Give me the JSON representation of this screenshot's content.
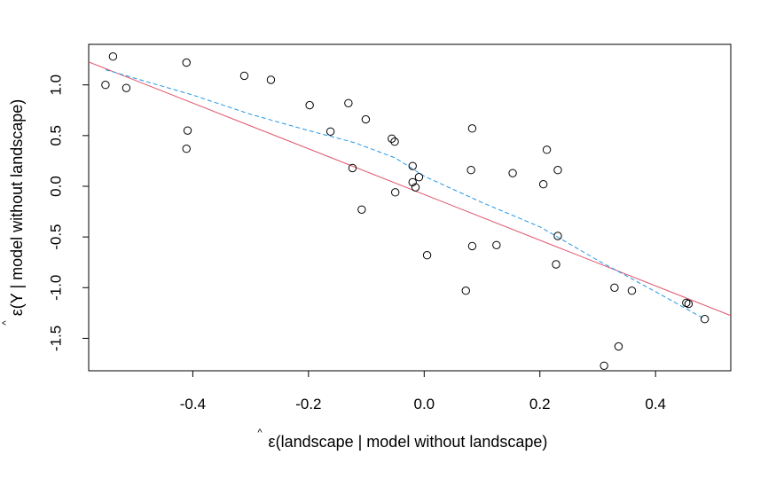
{
  "chart_data": {
    "type": "scatter",
    "title": "",
    "xlabel": "ε(landscape | model without landscape)",
    "ylabel": "ε(Y | model without landscape)",
    "xlabel_hat": "^",
    "ylabel_hat": "^",
    "xlim": [
      -0.58,
      0.53
    ],
    "ylim": [
      -1.82,
      1.4
    ],
    "x_ticks": [
      -0.4,
      -0.2,
      0.0,
      0.2,
      0.4
    ],
    "x_tick_labels": [
      "-0.4",
      "-0.2",
      "0.0",
      "0.2",
      "0.4"
    ],
    "y_ticks": [
      -1.5,
      -1.0,
      -0.5,
      0.0,
      0.5,
      1.0
    ],
    "y_tick_labels": [
      "-1.5",
      "-1.0",
      "-0.5",
      "0.0",
      "0.5",
      "1.0"
    ],
    "grid": false,
    "points": [
      {
        "x": -0.551,
        "y": 1.0
      },
      {
        "x": -0.538,
        "y": 1.28
      },
      {
        "x": -0.515,
        "y": 0.97
      },
      {
        "x": -0.411,
        "y": 1.22
      },
      {
        "x": -0.409,
        "y": 0.55
      },
      {
        "x": -0.411,
        "y": 0.37
      },
      {
        "x": -0.311,
        "y": 1.09
      },
      {
        "x": -0.265,
        "y": 1.05
      },
      {
        "x": -0.198,
        "y": 0.8
      },
      {
        "x": -0.162,
        "y": 0.54
      },
      {
        "x": -0.131,
        "y": 0.82
      },
      {
        "x": -0.124,
        "y": 0.18
      },
      {
        "x": -0.108,
        "y": -0.23
      },
      {
        "x": -0.101,
        "y": 0.66
      },
      {
        "x": -0.056,
        "y": 0.47
      },
      {
        "x": -0.051,
        "y": 0.44
      },
      {
        "x": -0.05,
        "y": -0.06
      },
      {
        "x": -0.02,
        "y": 0.2
      },
      {
        "x": -0.02,
        "y": 0.04
      },
      {
        "x": -0.015,
        "y": -0.01
      },
      {
        "x": -0.009,
        "y": 0.09
      },
      {
        "x": 0.005,
        "y": -0.68
      },
      {
        "x": 0.072,
        "y": -1.03
      },
      {
        "x": 0.081,
        "y": 0.16
      },
      {
        "x": 0.083,
        "y": 0.57
      },
      {
        "x": 0.083,
        "y": -0.59
      },
      {
        "x": 0.125,
        "y": -0.58
      },
      {
        "x": 0.153,
        "y": 0.13
      },
      {
        "x": 0.206,
        "y": 0.02
      },
      {
        "x": 0.212,
        "y": 0.36
      },
      {
        "x": 0.228,
        "y": -0.77
      },
      {
        "x": 0.231,
        "y": 0.16
      },
      {
        "x": 0.231,
        "y": -0.49
      },
      {
        "x": 0.311,
        "y": -1.77
      },
      {
        "x": 0.329,
        "y": -1.0
      },
      {
        "x": 0.336,
        "y": -1.58
      },
      {
        "x": 0.359,
        "y": -1.03
      },
      {
        "x": 0.453,
        "y": -1.15
      },
      {
        "x": 0.457,
        "y": -1.16
      },
      {
        "x": 0.485,
        "y": -1.31
      }
    ],
    "fit_line": {
      "color": "#DF536B",
      "intercept": -0.081,
      "slope": -2.254
    },
    "smooth_curve": {
      "color": "#2297E6",
      "points": [
        {
          "x": -0.551,
          "y": 1.15
        },
        {
          "x": -0.4,
          "y": 0.9
        },
        {
          "x": -0.3,
          "y": 0.71
        },
        {
          "x": -0.2,
          "y": 0.55
        },
        {
          "x": -0.12,
          "y": 0.43
        },
        {
          "x": -0.05,
          "y": 0.28
        },
        {
          "x": 0.0,
          "y": 0.1
        },
        {
          "x": 0.1,
          "y": -0.16
        },
        {
          "x": 0.2,
          "y": -0.4
        },
        {
          "x": 0.3,
          "y": -0.73
        },
        {
          "x": 0.4,
          "y": -1.04
        },
        {
          "x": 0.485,
          "y": -1.31
        }
      ]
    }
  }
}
